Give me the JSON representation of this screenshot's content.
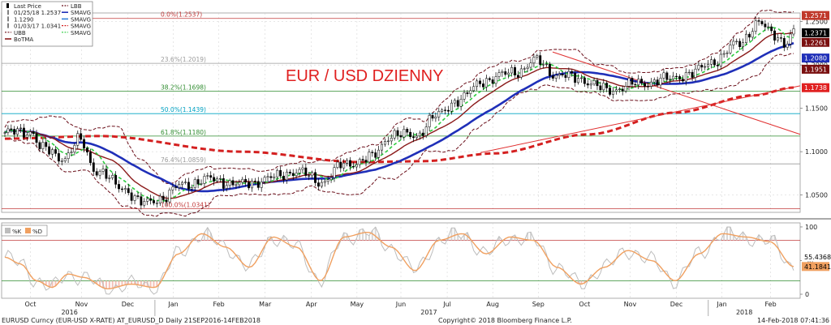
{
  "chart_data": [
    {
      "type": "candlestick",
      "title": "EUR / USD DZIENNY",
      "legend": [
        {
          "label": "Last Price",
          "kind": "candle",
          "color": "#000000"
        },
        {
          "label": "01/25/18 1.2537",
          "kind": "high",
          "color": "#000000"
        },
        {
          "label": "1.1290",
          "kind": "mark",
          "color": "#000000"
        },
        {
          "label": "01/03/17 1.0341",
          "kind": "low",
          "color": "#000000"
        },
        {
          "label": "UBB",
          "kind": "dash",
          "color": "#6b0f1a"
        },
        {
          "label": "BoTMA",
          "kind": "solid",
          "color": "#8b1a1a"
        },
        {
          "label": "LBB",
          "kind": "dash",
          "color": "#6b0f1a"
        },
        {
          "label": "SMAVG",
          "kind": "solid",
          "color": "#1f2fb8"
        },
        {
          "label": "SMAVG",
          "kind": "solid",
          "color": "#2f7fd8"
        },
        {
          "label": "SMAVG",
          "kind": "dash",
          "color": "#d42020"
        },
        {
          "label": "SMAVG",
          "kind": "dash",
          "color": "#2ecc40"
        }
      ],
      "ylim": [
        1.03,
        1.26
      ],
      "y_ticks": [
        1.05,
        1.1,
        1.15,
        1.2,
        1.25
      ],
      "y_tick_labels": [
        "1.0500",
        "1.1000",
        "1.1500",
        "1.2000",
        "1.2500"
      ],
      "fibonacci": [
        {
          "label": "0.0%(1.2537)",
          "value": 1.2537,
          "color": "#c23b3b"
        },
        {
          "label": "23.6%(1.2019)",
          "value": 1.2019,
          "color": "#9a9a9a"
        },
        {
          "label": "38.2%(1.1698)",
          "value": 1.1698,
          "color": "#2e8b2e"
        },
        {
          "label": "50.0%(1.1439)",
          "value": 1.1439,
          "color": "#00a3c4"
        },
        {
          "label": "61.8%(1.1180)",
          "value": 1.118,
          "color": "#2e8b2e"
        },
        {
          "label": "76.4%(1.0859)",
          "value": 1.0859,
          "color": "#9a9a9a"
        },
        {
          "label": "100.0%(1.0341)",
          "value": 1.0341,
          "color": "#c23b3b"
        }
      ],
      "value_tags": [
        {
          "value": 1.2571,
          "label": "1.2571",
          "bg": "#c0392b",
          "fg": "#ffffff"
        },
        {
          "value": 1.2371,
          "label": "1.2371",
          "bg": "#000000",
          "fg": "#ffffff"
        },
        {
          "value": 1.2261,
          "label": "1.2261",
          "bg": "#7a1010",
          "fg": "#ffffff"
        },
        {
          "value": 1.208,
          "label": "1.2080",
          "bg": "#1f2fb8",
          "fg": "#ffffff"
        },
        {
          "value": 1.1951,
          "label": "1.1951",
          "bg": "#7a1010",
          "fg": "#ffffff"
        },
        {
          "value": 1.1738,
          "label": "1.1738",
          "bg": "#e02020",
          "fg": "#ffffff"
        }
      ],
      "close_anchors": [
        {
          "x": 0,
          "y": 1.122
        },
        {
          "x": 0.035,
          "y": 1.123
        },
        {
          "x": 0.045,
          "y": 1.104
        },
        {
          "x": 0.075,
          "y": 1.093
        },
        {
          "x": 0.095,
          "y": 1.113
        },
        {
          "x": 0.115,
          "y": 1.079
        },
        {
          "x": 0.15,
          "y": 1.058
        },
        {
          "x": 0.175,
          "y": 1.04
        },
        {
          "x": 0.2,
          "y": 1.047
        },
        {
          "x": 0.225,
          "y": 1.062
        },
        {
          "x": 0.26,
          "y": 1.068
        },
        {
          "x": 0.3,
          "y": 1.062
        },
        {
          "x": 0.34,
          "y": 1.07
        },
        {
          "x": 0.37,
          "y": 1.078
        },
        {
          "x": 0.4,
          "y": 1.065
        },
        {
          "x": 0.43,
          "y": 1.085
        },
        {
          "x": 0.465,
          "y": 1.093
        },
        {
          "x": 0.49,
          "y": 1.12
        },
        {
          "x": 0.52,
          "y": 1.118
        },
        {
          "x": 0.545,
          "y": 1.14
        },
        {
          "x": 0.575,
          "y": 1.16
        },
        {
          "x": 0.61,
          "y": 1.183
        },
        {
          "x": 0.65,
          "y": 1.193
        },
        {
          "x": 0.675,
          "y": 1.205
        },
        {
          "x": 0.7,
          "y": 1.188
        },
        {
          "x": 0.725,
          "y": 1.185
        },
        {
          "x": 0.765,
          "y": 1.171
        },
        {
          "x": 0.8,
          "y": 1.178
        },
        {
          "x": 0.835,
          "y": 1.183
        },
        {
          "x": 0.87,
          "y": 1.19
        },
        {
          "x": 0.9,
          "y": 1.205
        },
        {
          "x": 0.93,
          "y": 1.225
        },
        {
          "x": 0.955,
          "y": 1.248
        },
        {
          "x": 0.975,
          "y": 1.236
        },
        {
          "x": 0.99,
          "y": 1.225
        },
        {
          "x": 1.0,
          "y": 1.237
        }
      ],
      "sma_red_anchors": [
        {
          "x": 0,
          "y": 1.115
        },
        {
          "x": 0.12,
          "y": 1.118
        },
        {
          "x": 0.3,
          "y": 1.1
        },
        {
          "x": 0.45,
          "y": 1.088
        },
        {
          "x": 0.53,
          "y": 1.089
        },
        {
          "x": 0.62,
          "y": 1.098
        },
        {
          "x": 0.74,
          "y": 1.12
        },
        {
          "x": 0.85,
          "y": 1.145
        },
        {
          "x": 0.95,
          "y": 1.165
        },
        {
          "x": 1.0,
          "y": 1.174
        }
      ],
      "trend_lines": [
        {
          "name": "downtrend",
          "points": [
            {
              "x": 0.69,
              "y": 1.215
            },
            {
              "x": 1.0,
              "y": 1.12
            }
          ]
        },
        {
          "name": "uptrend",
          "points": [
            {
              "x": 0.6,
              "y": 1.099
            },
            {
              "x": 1.0,
              "y": 1.176
            }
          ]
        }
      ]
    },
    {
      "type": "line",
      "legend": [
        {
          "label": "%K",
          "color": "#bdbdbd"
        },
        {
          "label": "%D",
          "color": "#f0a060"
        }
      ],
      "ylim": [
        -6,
        106
      ],
      "y_ticks": [
        0,
        50,
        100
      ],
      "y_tick_labels": [
        "0",
        "50",
        "100"
      ],
      "levels": [
        80,
        20
      ],
      "value_tags": [
        {
          "value": 55.4368,
          "label": "55.4368",
          "bg": "#ffffff",
          "fg": "#000000"
        },
        {
          "value": 41.1841,
          "label": "41.1841",
          "bg": "#f0a060",
          "fg": "#000000"
        }
      ],
      "d_anchors": [
        {
          "x": 0,
          "y": 55
        },
        {
          "x": 0.02,
          "y": 45
        },
        {
          "x": 0.04,
          "y": 20
        },
        {
          "x": 0.06,
          "y": 10
        },
        {
          "x": 0.08,
          "y": 30
        },
        {
          "x": 0.1,
          "y": 25
        },
        {
          "x": 0.13,
          "y": 8
        },
        {
          "x": 0.16,
          "y": 15
        },
        {
          "x": 0.19,
          "y": 10
        },
        {
          "x": 0.22,
          "y": 60
        },
        {
          "x": 0.25,
          "y": 90
        },
        {
          "x": 0.28,
          "y": 70
        },
        {
          "x": 0.31,
          "y": 40
        },
        {
          "x": 0.34,
          "y": 85
        },
        {
          "x": 0.37,
          "y": 70
        },
        {
          "x": 0.4,
          "y": 20
        },
        {
          "x": 0.43,
          "y": 85
        },
        {
          "x": 0.46,
          "y": 92
        },
        {
          "x": 0.49,
          "y": 70
        },
        {
          "x": 0.52,
          "y": 35
        },
        {
          "x": 0.55,
          "y": 80
        },
        {
          "x": 0.58,
          "y": 90
        },
        {
          "x": 0.61,
          "y": 60
        },
        {
          "x": 0.64,
          "y": 85
        },
        {
          "x": 0.67,
          "y": 80
        },
        {
          "x": 0.7,
          "y": 40
        },
        {
          "x": 0.73,
          "y": 15
        },
        {
          "x": 0.76,
          "y": 40
        },
        {
          "x": 0.79,
          "y": 65
        },
        {
          "x": 0.82,
          "y": 50
        },
        {
          "x": 0.85,
          "y": 20
        },
        {
          "x": 0.88,
          "y": 60
        },
        {
          "x": 0.91,
          "y": 90
        },
        {
          "x": 0.94,
          "y": 85
        },
        {
          "x": 0.97,
          "y": 78
        },
        {
          "x": 1.0,
          "y": 41
        }
      ]
    }
  ],
  "x_axis": {
    "months": [
      "Oct",
      "Nov",
      "Dec",
      "Jan",
      "Feb",
      "Mar",
      "Apr",
      "May",
      "Jun",
      "Jul",
      "Aug",
      "Sep",
      "Oct",
      "Nov",
      "Dec",
      "Jan",
      "Feb"
    ],
    "month_offsets": [
      0.036,
      0.1,
      0.158,
      0.215,
      0.272,
      0.33,
      0.388,
      0.445,
      0.5,
      0.558,
      0.615,
      0.672,
      0.73,
      0.787,
      0.845,
      0.902,
      0.963
    ],
    "years": [
      {
        "label": "2016",
        "offset": 0.085
      },
      {
        "label": "2017",
        "offset": 0.535
      },
      {
        "label": "2018",
        "offset": 0.93
      }
    ]
  },
  "footer": {
    "left": "EURUSD Curncy (EUR-USD X-RATE) AT_EURUSD_D  Daily 21SEP2016-14FEB2018",
    "center": "Copyright© 2018 Bloomberg Finance L.P.",
    "right": "14-Feb-2018 07:41:36"
  },
  "colors": {
    "candle": "#000000",
    "sma_fast": "#8b1a1a",
    "sma_blue": "#1f2fb8",
    "sma_green": "#2ecc40",
    "sma_red": "#d42020",
    "bands": "#6b0f1a",
    "title": "#e02020",
    "grid": "#cfcfcf",
    "trend": "#e03030"
  }
}
